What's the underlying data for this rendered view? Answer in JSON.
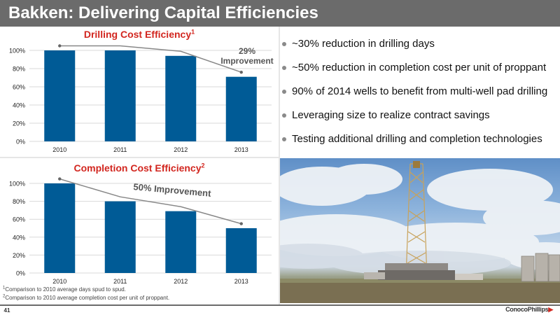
{
  "title": "Bakken: Delivering Capital Efficiencies",
  "colors": {
    "bar": "#005b96",
    "title_red": "#d2261f",
    "trend": "#888888"
  },
  "chart_data": [
    {
      "type": "bar",
      "title": "Drilling Cost Efficiency",
      "title_sup": "1",
      "categories": [
        "2010",
        "2011",
        "2012",
        "2013"
      ],
      "values": [
        100,
        100,
        94,
        71
      ],
      "ylim": [
        0,
        100
      ],
      "yticks": [
        0,
        20,
        40,
        60,
        80,
        100
      ],
      "ytick_labels": [
        "0%",
        "20%",
        "40%",
        "60%",
        "80%",
        "100%"
      ],
      "annotation": "29% Improvement",
      "annotation_line1": "29%",
      "annotation_line2": "Improvement",
      "trend_line": [
        105,
        105,
        99,
        76
      ]
    },
    {
      "type": "bar",
      "title": "Completion Cost Efficiency",
      "title_sup": "2",
      "categories": [
        "2010",
        "2011",
        "2012",
        "2013"
      ],
      "values": [
        100,
        80,
        69,
        50
      ],
      "ylim": [
        0,
        100
      ],
      "yticks": [
        0,
        20,
        40,
        60,
        80,
        100
      ],
      "ytick_labels": [
        "0%",
        "20%",
        "40%",
        "60%",
        "80%",
        "100%"
      ],
      "annotation": "50% Improvement",
      "trend_line": [
        105,
        85,
        74,
        55
      ]
    }
  ],
  "bullets": [
    "~30% reduction in drilling days",
    "~50% reduction in completion cost per unit of proppant",
    "90% of 2014 wells to benefit from multi-well pad drilling",
    "Leveraging size to realize contract savings",
    "Testing additional drilling and completion technologies"
  ],
  "footnotes": [
    {
      "sup": "1",
      "text": "Comparison to 2010 average days spud to spud."
    },
    {
      "sup": "2",
      "text": "Comparison to 2010 average completion cost per unit of proppant."
    }
  ],
  "page_number": "41",
  "brand": {
    "name": "ConocoPhillips",
    "icon": "conocophillips-logo-icon"
  }
}
